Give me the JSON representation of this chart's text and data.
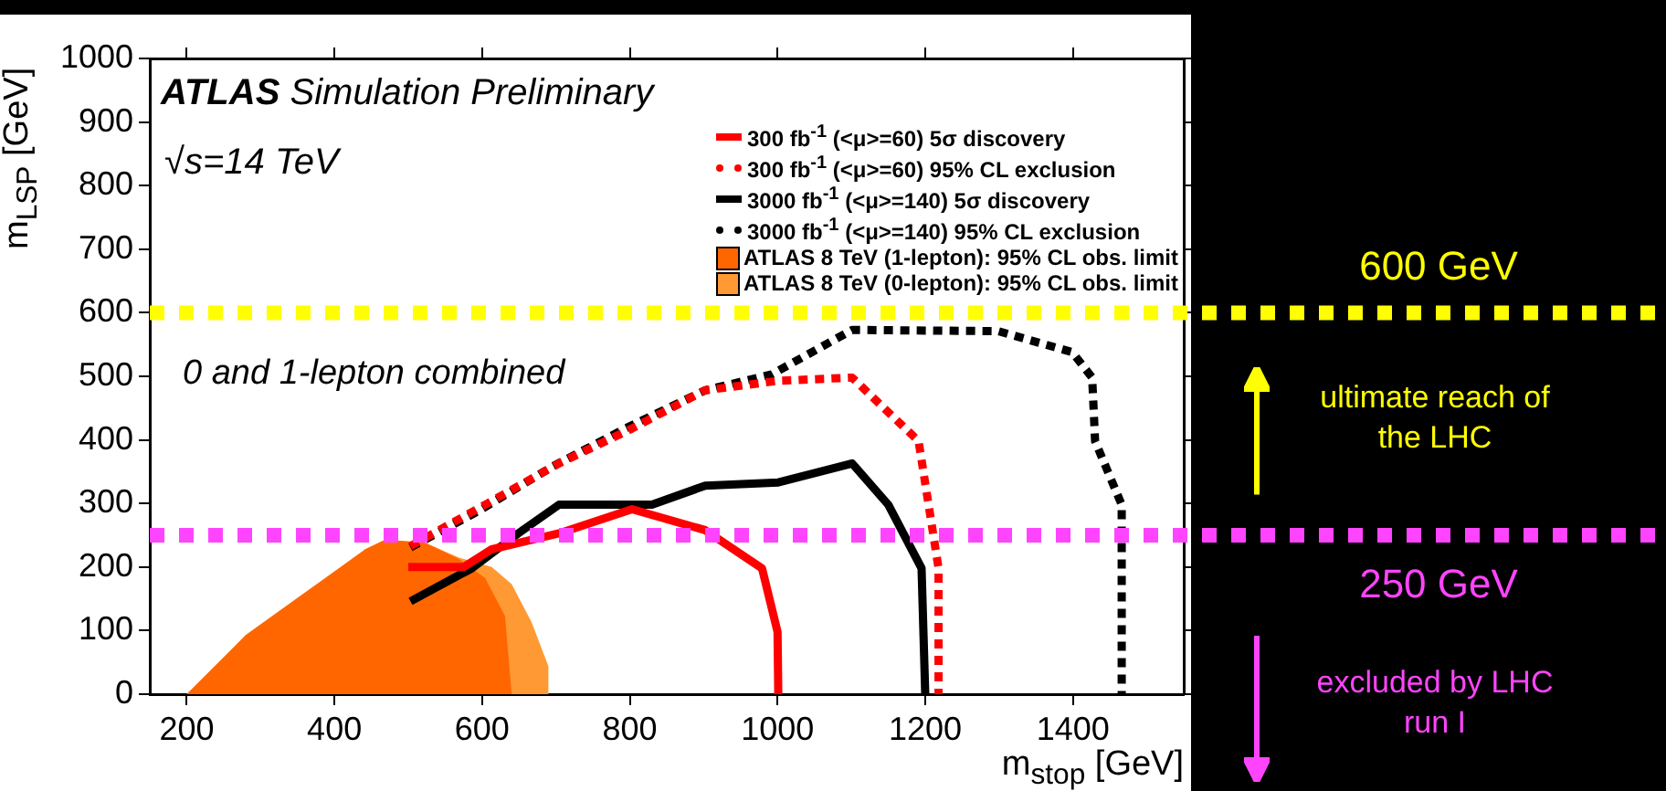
{
  "chart_data": {
    "type": "line",
    "title": "ATLAS Simulation Preliminary",
    "xlabel": "m$_{stop}$ [GeV]",
    "ylabel": "m$_{LSP}$ [GeV]",
    "xlim": [
      150,
      1550
    ],
    "xticks": [
      200,
      400,
      600,
      800,
      1000,
      1200,
      1400
    ],
    "ylim": [
      0,
      1000
    ],
    "yticks": [
      0,
      100,
      200,
      300,
      400,
      500,
      600,
      700,
      800,
      900,
      1000
    ],
    "grid": false,
    "legend": "top right",
    "marker": "none",
    "annotations": [
      "√s=14 TeV",
      "0 and 1-lepton combined",
      "ultimate reach of the LHC",
      "excluded by LHC run I"
    ],
    "ref_lines": [
      {
        "axis": "y",
        "value": 600,
        "label": "600 GeV",
        "color": "#ffff00",
        "line_style": "dotted"
      },
      {
        "axis": "y",
        "value": 250,
        "label": "250 GeV",
        "color": "#ff44ff",
        "line_style": "dotted"
      }
    ],
    "series": [
      {
        "name": "300 fb$^{-1}$ (<μ>=60) 5σ discovery",
        "color": "#ff0000",
        "line_style": "solid",
        "x": [
          500,
          575,
          613,
          704,
          803,
          902,
          979,
          1000,
          1001
        ],
        "values": [
          200,
          200,
          228,
          253,
          291,
          258,
          198,
          98,
          0
        ]
      },
      {
        "name": "300 fb$^{-1}$ (<μ>=60) 95% CL exclusion",
        "color": "#ff0000",
        "line_style": "dotted",
        "x": [
          503,
          604,
          704,
          803,
          902,
          1001,
          1101,
          1191,
          1218,
          1218
        ],
        "values": [
          233,
          298,
          363,
          418,
          478,
          493,
          498,
          398,
          198,
          0
        ]
      },
      {
        "name": "3000 fb$^{-1}$ (<μ>=140) 5σ discovery",
        "color": "#000000",
        "line_style": "solid",
        "x": [
          503,
          586,
          649,
          704,
          830,
          902,
          1001,
          1101,
          1150,
          1195,
          1200
        ],
        "values": [
          146,
          198,
          253,
          298,
          298,
          328,
          333,
          363,
          298,
          198,
          0
        ]
      },
      {
        "name": "3000 fb$^{-1}$ (<μ>=140) 95% CL exclusion",
        "color": "#000000",
        "line_style": "dotted",
        "x": [
          503,
          595,
          695,
          794,
          902,
          992,
          1101,
          1299,
          1399,
          1426,
          1430,
          1466,
          1466
        ],
        "values": [
          231,
          288,
          358,
          418,
          478,
          503,
          573,
          571,
          538,
          498,
          398,
          298,
          0
        ]
      },
      {
        "name": "ATLAS 8 TeV (1-lepton): 95% CL obs. limit",
        "type": "area",
        "color": "#ff6600",
        "x": [
          200,
          280,
          352,
          406,
          442,
          469,
          523,
          568,
          604,
          631,
          640
        ],
        "values": [
          0,
          93,
          153,
          198,
          228,
          243,
          238,
          213,
          183,
          123,
          0
        ]
      },
      {
        "name": "ATLAS 8 TeV (0-lepton): 95% CL obs. limit",
        "type": "area",
        "color": "#ff9933",
        "x": [
          200,
          280,
          352,
          406,
          442,
          469,
          523,
          568,
          613,
          640,
          667,
          690,
          690
        ],
        "values": [
          0,
          93,
          153,
          198,
          228,
          243,
          238,
          215,
          200,
          173,
          113,
          43,
          0
        ]
      }
    ]
  }
}
